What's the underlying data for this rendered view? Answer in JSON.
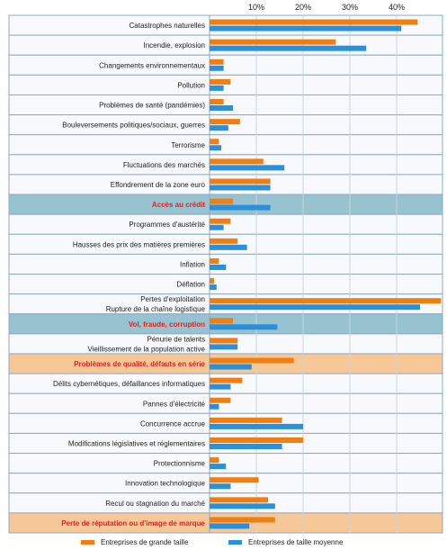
{
  "chart_data": {
    "type": "bar",
    "orientation": "horizontal",
    "xlim": [
      0,
      50
    ],
    "xticks": [
      {
        "value": 10,
        "label": "10%"
      },
      {
        "value": 20,
        "label": "20%"
      },
      {
        "value": 30,
        "label": "30%"
      },
      {
        "value": 40,
        "label": "40%"
      }
    ],
    "grid": true,
    "legend_position": "bottom",
    "series": [
      {
        "name": "Entreprises de grande taille",
        "color": "#f07f13"
      },
      {
        "name": "Entreprises de taille moyenne",
        "color": "#2b90d9"
      }
    ],
    "rows": [
      {
        "labels": [
          "Catastrophes naturelles"
        ],
        "values": [
          44.5,
          41.0
        ],
        "style": "normal"
      },
      {
        "labels": [
          "Incendie, explosion"
        ],
        "values": [
          27.0,
          33.5
        ],
        "style": "normal"
      },
      {
        "labels": [
          "Changements environnementaux"
        ],
        "values": [
          3.0,
          3.0
        ],
        "style": "normal"
      },
      {
        "labels": [
          "Pollution"
        ],
        "values": [
          4.5,
          3.0
        ],
        "style": "normal"
      },
      {
        "labels": [
          "Problèmes de santé (pandémies)"
        ],
        "values": [
          3.0,
          5.0
        ],
        "style": "normal"
      },
      {
        "labels": [
          "Bouleversements politiques/sociaux, guerres"
        ],
        "values": [
          6.5,
          4.0
        ],
        "style": "normal"
      },
      {
        "labels": [
          "Terrorisme"
        ],
        "values": [
          2.0,
          2.5
        ],
        "style": "normal"
      },
      {
        "labels": [
          "Fluctuations des marchés"
        ],
        "values": [
          11.5,
          16.0
        ],
        "style": "normal"
      },
      {
        "labels": [
          "Effondrement de la zone euro"
        ],
        "values": [
          13.0,
          13.0
        ],
        "style": "normal"
      },
      {
        "labels": [
          "Accès au crédit"
        ],
        "values": [
          5.0,
          13.0
        ],
        "style": "blue"
      },
      {
        "labels": [
          "Programmes d'austérité"
        ],
        "values": [
          4.5,
          3.0
        ],
        "style": "normal"
      },
      {
        "labels": [
          "Hausses des prix des matières premières"
        ],
        "values": [
          6.0,
          8.0
        ],
        "style": "normal"
      },
      {
        "labels": [
          "Inflation"
        ],
        "values": [
          2.0,
          3.5
        ],
        "style": "normal"
      },
      {
        "labels": [
          "Déflation"
        ],
        "values": [
          1.0,
          1.5
        ],
        "style": "normal"
      },
      {
        "labels": [
          "Pertes d'exploitation",
          "Rupture de la chaîne logistique"
        ],
        "values": [
          49.5,
          45.0
        ],
        "style": "normal"
      },
      {
        "labels": [
          "Vol, fraude, corruption"
        ],
        "values": [
          5.0,
          14.5
        ],
        "style": "blue"
      },
      {
        "labels": [
          "Pénurie de talents",
          "Vieillissement de la population active"
        ],
        "values": [
          6.0,
          6.0
        ],
        "style": "normal"
      },
      {
        "labels": [
          "Problèmes de qualité, défauts en série"
        ],
        "values": [
          18.0,
          9.0
        ],
        "style": "orange"
      },
      {
        "labels": [
          "Délits cybernétiques, défaillances informatiques"
        ],
        "values": [
          7.0,
          4.5
        ],
        "style": "normal"
      },
      {
        "labels": [
          "Pannes d'électricité"
        ],
        "values": [
          4.5,
          2.0
        ],
        "style": "normal"
      },
      {
        "labels": [
          "Concurrence accrue"
        ],
        "values": [
          15.5,
          20.0
        ],
        "style": "normal"
      },
      {
        "labels": [
          "Modifications législatives et réglementaires"
        ],
        "values": [
          20.0,
          15.5
        ],
        "style": "normal"
      },
      {
        "labels": [
          "Protectionnisme"
        ],
        "values": [
          2.0,
          3.5
        ],
        "style": "normal"
      },
      {
        "labels": [
          "Innovation technologique"
        ],
        "values": [
          10.5,
          4.5
        ],
        "style": "normal"
      },
      {
        "labels": [
          "Recul ou stagnation du marché"
        ],
        "values": [
          12.5,
          14.0
        ],
        "style": "normal"
      },
      {
        "labels": [
          "Perte de réputation ou d'image de marque"
        ],
        "values": [
          14.0,
          8.5
        ],
        "style": "orange"
      }
    ]
  },
  "colors": {
    "row_border": "#8fa9c4",
    "row_fill": "#f7f9fc",
    "blue_band": "#97c2d0",
    "orange_band": "#f6c897",
    "highlight_text": "#e8201e",
    "grid": "#c9d3de",
    "label_text": "#222222"
  }
}
